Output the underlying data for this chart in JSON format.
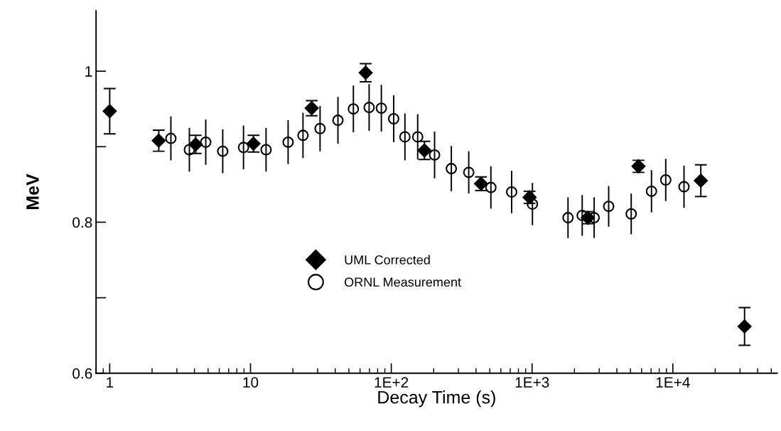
{
  "chart_data": {
    "type": "scatter",
    "xlabel": "Decay Time (s)",
    "ylabel": "MeV",
    "log": "x",
    "xlim": [
      0.8,
      55000
    ],
    "xticks": [
      1,
      10,
      {
        "value": 100,
        "label": "1E+2"
      },
      {
        "value": 1000,
        "label": "1E+3"
      },
      {
        "value": 10000,
        "label": "1E+4"
      }
    ],
    "ylim": [
      0.6,
      1.08
    ],
    "yticks": [
      0.6,
      {
        "value": 0.7,
        "label": null
      },
      0.8,
      {
        "value": 0.9,
        "label": null
      },
      1
    ],
    "grid": false,
    "legend": "bottom",
    "series": [
      {
        "name": "UML Corrected",
        "color": "#000000",
        "marker": "diamond",
        "x": [
          1,
          2.23,
          4.08,
          10.5,
          27.2,
          65.8,
          172,
          434,
          960,
          2490,
          5700,
          15800,
          32300
        ],
        "values": [
          0.947,
          0.908,
          0.903,
          0.904,
          0.951,
          0.998,
          0.895,
          0.851,
          0.833,
          0.806,
          0.874,
          0.855,
          0.662
        ],
        "errors": [
          0.03,
          0.014,
          0.012,
          0.011,
          0.01,
          0.012,
          0.012,
          0.009,
          0.008,
          0.008,
          0.008,
          0.021,
          0.025
        ]
      },
      {
        "name": "ORNL Measurement",
        "color": "#000000",
        "marker": "circle",
        "x": [
          2.72,
          3.68,
          4.81,
          6.35,
          8.92,
          12.9,
          18.5,
          23.6,
          31.2,
          41.8,
          53.8,
          69.6,
          85,
          104,
          125,
          154,
          203,
          267,
          355,
          510,
          716,
          1006,
          1800,
          2270,
          2760,
          3500,
          5060,
          7050,
          8900,
          12000
        ],
        "values": [
          0.911,
          0.896,
          0.906,
          0.894,
          0.899,
          0.896,
          0.906,
          0.915,
          0.924,
          0.935,
          0.95,
          0.952,
          0.951,
          0.937,
          0.913,
          0.913,
          0.889,
          0.871,
          0.866,
          0.846,
          0.84,
          0.824,
          0.806,
          0.809,
          0.806,
          0.821,
          0.811,
          0.841,
          0.856,
          0.847
        ],
        "errors": [
          0.029,
          0.029,
          0.03,
          0.029,
          0.029,
          0.029,
          0.029,
          0.03,
          0.03,
          0.031,
          0.031,
          0.031,
          0.031,
          0.031,
          0.031,
          0.03,
          0.031,
          0.03,
          0.028,
          0.028,
          0.028,
          0.028,
          0.027,
          0.027,
          0.027,
          0.027,
          0.027,
          0.028,
          0.028,
          0.028
        ]
      }
    ]
  }
}
